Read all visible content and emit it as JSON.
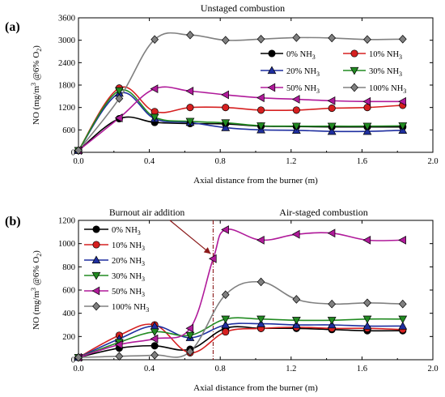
{
  "chart_data": [
    {
      "panel": "(a)",
      "type": "line",
      "title": "Unstaged combustion",
      "xlabel": "Axial distance from the burner (m)",
      "ylabel": "NO (mg/m³ @6% O₂)",
      "xlim": [
        0.0,
        2.0
      ],
      "ylim": [
        0,
        3600
      ],
      "xticks": [
        "0.0",
        "0.4",
        "0.8",
        "1.2",
        "1.6",
        "2.0"
      ],
      "yticks": [
        "0",
        "600",
        "1200",
        "1800",
        "2400",
        "3000",
        "3600"
      ],
      "grid": false,
      "legend_placement": "right, two columns",
      "series": [
        {
          "name": "0% NH₃",
          "color": "#000000",
          "marker": "circle",
          "x": [
            0,
            0.23,
            0.43,
            0.63,
            0.83,
            1.03,
            1.23,
            1.43,
            1.63,
            1.83
          ],
          "y": [
            50,
            900,
            800,
            770,
            760,
            700,
            690,
            680,
            680,
            680
          ]
        },
        {
          "name": "10% NH₃",
          "color": "#d62020",
          "marker": "circle",
          "x": [
            0,
            0.23,
            0.43,
            0.63,
            0.83,
            1.03,
            1.23,
            1.43,
            1.63,
            1.83
          ],
          "y": [
            50,
            1720,
            1090,
            1200,
            1200,
            1130,
            1130,
            1180,
            1200,
            1260
          ]
        },
        {
          "name": "20% NH₃",
          "color": "#1f2fa0",
          "marker": "triangle-up",
          "x": [
            0,
            0.23,
            0.43,
            0.63,
            0.83,
            1.03,
            1.23,
            1.43,
            1.63,
            1.83
          ],
          "y": [
            50,
            1580,
            900,
            800,
            660,
            600,
            590,
            560,
            560,
            590
          ]
        },
        {
          "name": "30% NH₃",
          "color": "#228b22",
          "marker": "triangle-down",
          "x": [
            0,
            0.23,
            0.43,
            0.63,
            0.83,
            1.03,
            1.23,
            1.43,
            1.63,
            1.83
          ],
          "y": [
            50,
            1650,
            940,
            830,
            790,
            710,
            700,
            700,
            700,
            710
          ]
        },
        {
          "name": "50% NH₃",
          "color": "#b01a9a",
          "marker": "triangle-left",
          "x": [
            0,
            0.23,
            0.43,
            0.63,
            0.83,
            1.03,
            1.23,
            1.43,
            1.63,
            1.83
          ],
          "y": [
            50,
            920,
            1700,
            1640,
            1540,
            1460,
            1420,
            1380,
            1360,
            1360
          ]
        },
        {
          "name": "100% NH₃",
          "color": "#808080",
          "marker": "diamond",
          "x": [
            0,
            0.23,
            0.43,
            0.63,
            0.83,
            1.03,
            1.23,
            1.43,
            1.63,
            1.83
          ],
          "y": [
            50,
            1440,
            3020,
            3140,
            3000,
            3030,
            3070,
            3060,
            3020,
            3030
          ]
        }
      ]
    },
    {
      "panel": "(b)",
      "type": "line",
      "title": "Air-staged combustion",
      "annotation": "Burnout air addition",
      "annotation_x": 0.76,
      "xlabel": "Axial distance from the burner (m)",
      "ylabel": "NO (mg/m³ @6% O₂)",
      "xlim": [
        0.0,
        2.0
      ],
      "ylim": [
        0,
        1200
      ],
      "xticks": [
        "0.0",
        "0.4",
        "0.8",
        "1.2",
        "1.6",
        "2.0"
      ],
      "yticks": [
        "0",
        "200",
        "400",
        "600",
        "800",
        "1000",
        "1200"
      ],
      "grid": false,
      "legend_placement": "top-left, one column",
      "series": [
        {
          "name": "0% NH₃",
          "color": "#000000",
          "marker": "circle",
          "x": [
            0,
            0.23,
            0.43,
            0.63,
            0.83,
            1.03,
            1.23,
            1.43,
            1.63,
            1.83
          ],
          "y": [
            20,
            100,
            120,
            90,
            270,
            270,
            270,
            260,
            250,
            250
          ]
        },
        {
          "name": "10% NH₃",
          "color": "#d62020",
          "marker": "circle",
          "x": [
            0,
            0.23,
            0.43,
            0.63,
            0.83,
            1.03,
            1.23,
            1.43,
            1.63,
            1.83
          ],
          "y": [
            20,
            210,
            300,
            60,
            240,
            270,
            280,
            270,
            270,
            260
          ]
        },
        {
          "name": "20% NH₃",
          "color": "#1f2fa0",
          "marker": "triangle-up",
          "x": [
            0,
            0.23,
            0.43,
            0.63,
            0.83,
            1.03,
            1.23,
            1.43,
            1.63,
            1.83
          ],
          "y": [
            20,
            180,
            290,
            190,
            300,
            310,
            300,
            300,
            290,
            290
          ]
        },
        {
          "name": "30% NH₃",
          "color": "#228b22",
          "marker": "triangle-down",
          "x": [
            0,
            0.23,
            0.43,
            0.63,
            0.83,
            1.03,
            1.23,
            1.43,
            1.63,
            1.83
          ],
          "y": [
            20,
            150,
            240,
            210,
            350,
            350,
            340,
            340,
            350,
            350
          ]
        },
        {
          "name": "50% NH₃",
          "color": "#b01a9a",
          "marker": "triangle-left",
          "x": [
            0,
            0.23,
            0.43,
            0.63,
            0.76,
            0.83,
            1.03,
            1.23,
            1.43,
            1.63,
            1.83
          ],
          "y": [
            20,
            130,
            180,
            270,
            870,
            1120,
            1030,
            1080,
            1090,
            1030,
            1030
          ]
        },
        {
          "name": "100% NH₃",
          "color": "#808080",
          "marker": "diamond",
          "x": [
            0,
            0.23,
            0.43,
            0.63,
            0.83,
            1.03,
            1.23,
            1.43,
            1.63,
            1.83
          ],
          "y": [
            20,
            30,
            40,
            70,
            560,
            670,
            520,
            480,
            490,
            480
          ]
        }
      ]
    }
  ]
}
